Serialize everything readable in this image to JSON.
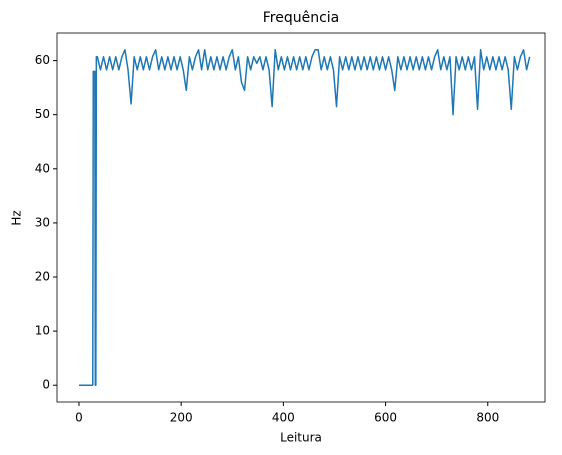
{
  "chart_data": {
    "type": "line",
    "title": "Frequência",
    "x_label": "Leitura",
    "y_label": "Hz",
    "color": "#1f77b4",
    "x": [
      0,
      27,
      28,
      31,
      32,
      33,
      34,
      36,
      42,
      48,
      54,
      60,
      66,
      72,
      78,
      84,
      90,
      96,
      102,
      108,
      114,
      120,
      126,
      132,
      138,
      144,
      150,
      156,
      162,
      168,
      174,
      180,
      186,
      192,
      198,
      204,
      210,
      216,
      222,
      228,
      234,
      240,
      246,
      252,
      258,
      264,
      270,
      276,
      282,
      288,
      294,
      300,
      306,
      312,
      318,
      324,
      330,
      336,
      342,
      348,
      354,
      360,
      366,
      372,
      378,
      384,
      390,
      396,
      402,
      408,
      414,
      420,
      426,
      432,
      438,
      444,
      450,
      456,
      462,
      468,
      474,
      480,
      486,
      492,
      498,
      504,
      510,
      516,
      522,
      528,
      534,
      540,
      546,
      552,
      558,
      564,
      570,
      576,
      582,
      588,
      594,
      600,
      606,
      612,
      618,
      624,
      630,
      636,
      642,
      648,
      654,
      660,
      666,
      672,
      678,
      684,
      690,
      696,
      702,
      708,
      714,
      720,
      726,
      732,
      738,
      744,
      750,
      756,
      762,
      768,
      774,
      780,
      786,
      792,
      798,
      804,
      810,
      816,
      822,
      828,
      834,
      840,
      846,
      852,
      858,
      864,
      870,
      876,
      882
    ],
    "values": [
      0,
      0,
      58,
      58,
      0,
      0,
      60.7,
      60.7,
      58.3,
      60.7,
      58.3,
      60.7,
      58.3,
      60.7,
      58.3,
      60.7,
      62,
      58.3,
      52,
      60.7,
      58.3,
      60.7,
      58.3,
      60.7,
      58.3,
      60.7,
      62,
      58.3,
      60.7,
      58.3,
      60.7,
      58.3,
      60.7,
      58.3,
      60.7,
      58.3,
      54.5,
      60.7,
      58.3,
      60.7,
      62,
      58.3,
      62,
      58.3,
      60.7,
      58.3,
      60.7,
      58.3,
      60.7,
      58.3,
      60.7,
      62,
      58.3,
      60.7,
      56,
      54.5,
      60.7,
      58.3,
      60.7,
      59.5,
      60.7,
      58.3,
      60.7,
      58.3,
      51.5,
      62,
      58.3,
      60.7,
      58.3,
      60.7,
      58.3,
      60.7,
      58.3,
      60.7,
      58.3,
      60.7,
      58.3,
      60.7,
      62,
      62,
      58.3,
      60.7,
      58.3,
      60.7,
      58.3,
      51.5,
      60.7,
      58.3,
      60.7,
      58.3,
      60.7,
      58.3,
      60.7,
      58.3,
      60.7,
      58.3,
      60.7,
      58.3,
      60.7,
      58.3,
      60.7,
      58.3,
      60.7,
      58.3,
      54.5,
      60.7,
      58.3,
      60.7,
      58.3,
      60.7,
      58.3,
      60.7,
      58.3,
      60.7,
      58.3,
      60.7,
      58.3,
      60.7,
      62,
      58.3,
      60.7,
      58.3,
      60.7,
      50,
      60.7,
      58.3,
      60.7,
      58.3,
      60.7,
      58.3,
      60.7,
      51,
      62,
      58.3,
      60.7,
      58.3,
      60.7,
      58.3,
      60.7,
      58.3,
      60.7,
      58.3,
      51,
      60.7,
      58.3,
      60.7,
      62,
      58.3,
      60.7
    ],
    "xlim": [
      -43,
      912
    ],
    "ylim": [
      -3.1,
      65.1
    ],
    "xticks": [
      0,
      200,
      400,
      600,
      800
    ],
    "yticks": [
      0,
      10,
      20,
      30,
      40,
      50,
      60
    ]
  }
}
